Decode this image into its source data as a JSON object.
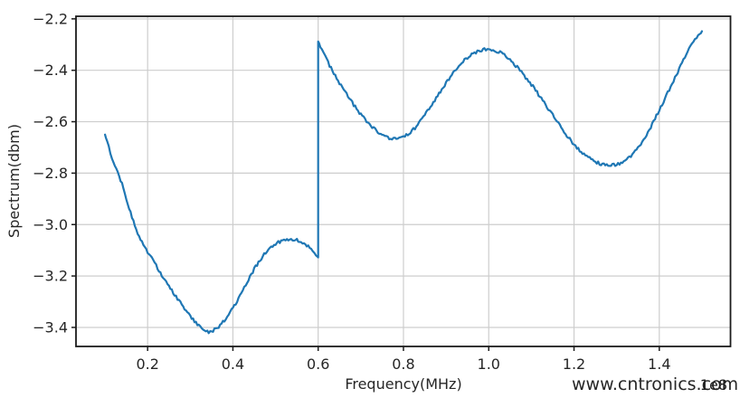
{
  "figure": {
    "watermark": {
      "text": "www.cntronics.com",
      "color": "#b6e2b4"
    }
  },
  "chart_data": {
    "type": "line",
    "title": "",
    "xlabel": "Frequency(MHz)",
    "ylabel": "Spectrum(dbm)",
    "x_offset_label": "1e8",
    "x_unit_multiplier": 100000000.0,
    "xlim": [
      0.032,
      1.567
    ],
    "ylim": [
      -3.474,
      -2.19
    ],
    "grid": true,
    "legend": "none",
    "x_ticks": [
      0.2,
      0.4,
      0.6,
      0.8,
      1.0,
      1.2,
      1.4
    ],
    "x_tick_labels": [
      "0.2",
      "0.4",
      "0.6",
      "0.8",
      "1.0",
      "1.2",
      "1.4"
    ],
    "y_ticks": [
      -2.2,
      -2.4,
      -2.6,
      -2.8,
      -3.0,
      -3.2,
      -3.4
    ],
    "y_tick_labels": [
      "−2.2",
      "−2.4",
      "−2.6",
      "−2.8",
      "−3.0",
      "−3.2",
      "−3.4"
    ],
    "grid_color": "#cdcdcd",
    "axis_color": "#1c1c1c",
    "line_color": "#1f77b4",
    "noise_amplitude": 0.006,
    "series": [
      {
        "name": "spectrum",
        "segments": [
          [
            [
              0.1,
              -2.65
            ],
            [
              0.12,
              -2.758
            ],
            [
              0.14,
              -2.842
            ],
            [
              0.16,
              -2.952
            ],
            [
              0.18,
              -3.048
            ],
            [
              0.2,
              -3.105
            ],
            [
              0.22,
              -3.16
            ],
            [
              0.24,
              -3.215
            ],
            [
              0.26,
              -3.265
            ],
            [
              0.28,
              -3.312
            ],
            [
              0.3,
              -3.355
            ],
            [
              0.32,
              -3.394
            ],
            [
              0.34,
              -3.416
            ],
            [
              0.36,
              -3.405
            ],
            [
              0.38,
              -3.372
            ],
            [
              0.4,
              -3.325
            ],
            [
              0.42,
              -3.268
            ],
            [
              0.44,
              -3.202
            ],
            [
              0.46,
              -3.148
            ],
            [
              0.48,
              -3.104
            ],
            [
              0.5,
              -3.075
            ],
            [
              0.52,
              -3.062
            ],
            [
              0.54,
              -3.057
            ],
            [
              0.56,
              -3.066
            ],
            [
              0.58,
              -3.092
            ],
            [
              0.6,
              -3.128
            ]
          ],
          [
            [
              0.6,
              -2.288
            ],
            [
              0.62,
              -2.36
            ],
            [
              0.64,
              -2.42
            ],
            [
              0.66,
              -2.476
            ],
            [
              0.68,
              -2.526
            ],
            [
              0.7,
              -2.572
            ],
            [
              0.72,
              -2.61
            ],
            [
              0.74,
              -2.64
            ],
            [
              0.76,
              -2.66
            ],
            [
              0.78,
              -2.668
            ],
            [
              0.8,
              -2.66
            ],
            [
              0.82,
              -2.636
            ],
            [
              0.84,
              -2.597
            ],
            [
              0.86,
              -2.55
            ],
            [
              0.88,
              -2.5
            ],
            [
              0.9,
              -2.45
            ],
            [
              0.92,
              -2.404
            ],
            [
              0.94,
              -2.366
            ],
            [
              0.96,
              -2.34
            ],
            [
              0.98,
              -2.324
            ],
            [
              1.0,
              -2.318
            ],
            [
              1.02,
              -2.326
            ],
            [
              1.04,
              -2.346
            ],
            [
              1.06,
              -2.376
            ],
            [
              1.08,
              -2.414
            ],
            [
              1.1,
              -2.456
            ],
            [
              1.12,
              -2.502
            ],
            [
              1.14,
              -2.55
            ],
            [
              1.16,
              -2.6
            ],
            [
              1.18,
              -2.646
            ],
            [
              1.2,
              -2.688
            ],
            [
              1.22,
              -2.722
            ],
            [
              1.24,
              -2.746
            ],
            [
              1.26,
              -2.762
            ],
            [
              1.28,
              -2.77
            ],
            [
              1.3,
              -2.766
            ],
            [
              1.32,
              -2.75
            ],
            [
              1.34,
              -2.72
            ],
            [
              1.36,
              -2.676
            ],
            [
              1.38,
              -2.62
            ],
            [
              1.4,
              -2.554
            ],
            [
              1.42,
              -2.486
            ],
            [
              1.44,
              -2.418
            ],
            [
              1.46,
              -2.35
            ],
            [
              1.48,
              -2.29
            ],
            [
              1.5,
              -2.248
            ]
          ]
        ]
      }
    ]
  }
}
